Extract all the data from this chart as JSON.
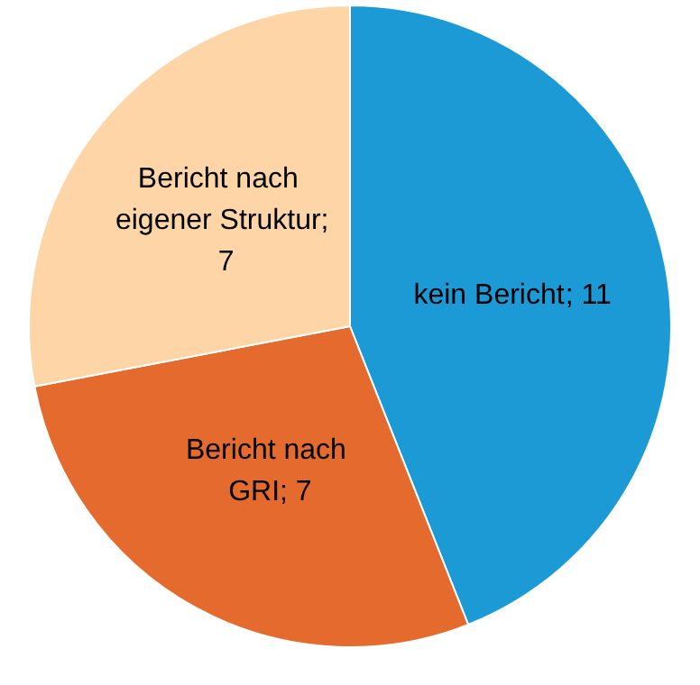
{
  "chart_data": {
    "type": "pie",
    "categories": [
      "kein Bericht",
      "Bericht nach GRI",
      "Bericht nach eigener Struktur"
    ],
    "values": [
      11,
      7,
      7
    ],
    "value_labels": [
      "; 11",
      "; 7",
      "; 7"
    ],
    "colors": [
      "#1b9ad6",
      "#e46a2e",
      "#fdd5a6"
    ],
    "legend": false
  }
}
